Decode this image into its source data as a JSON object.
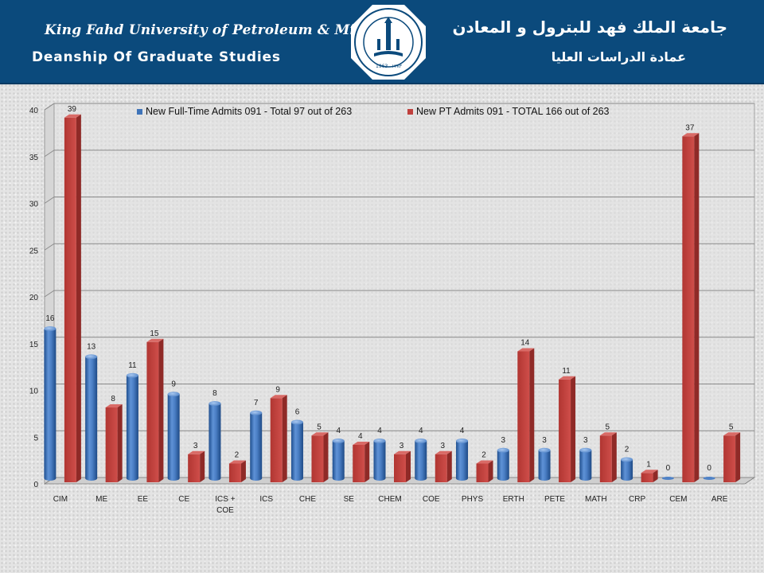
{
  "header": {
    "university_en": "King Fahd University of Petroleum & Minerals",
    "department_en": "Deanship Of Graduate Studies",
    "university_ar": "جامعة الملك فهد للبترول و المعادن",
    "department_ar": "عمادة الدراسات العليا",
    "logo_year_left": "1963",
    "logo_year_right": "١٣٨٣"
  },
  "colors": {
    "header_bg": "#0b4a7c",
    "series_fulltime": "#3f74b9",
    "series_parttime": "#c0403d"
  },
  "chart_data": {
    "type": "bar",
    "title": "",
    "xlabel": "",
    "ylabel": "",
    "ylim": [
      0,
      40
    ],
    "yticks": [
      0,
      5,
      10,
      15,
      20,
      25,
      30,
      35,
      40
    ],
    "grid": true,
    "legend_position": "top",
    "categories": [
      "CIM",
      "ME",
      "EE",
      "CE",
      "ICS + COE",
      "ICS",
      "CHE",
      "SE",
      "CHEM",
      "COE",
      "PHYS",
      "ERTH",
      "PETE",
      "MATH",
      "CRP",
      "CEM",
      "ARE"
    ],
    "series": [
      {
        "name": "New Full-Time Admits 091 - Total 97 out of 263",
        "shape": "cylinder",
        "values": [
          16,
          13,
          11,
          9,
          8,
          7,
          6,
          4,
          4,
          4,
          4,
          3,
          3,
          3,
          2,
          0,
          0
        ]
      },
      {
        "name": "New PT Admits 091 - TOTAL 166 out of 263",
        "shape": "box",
        "values": [
          39,
          8,
          15,
          3,
          2,
          9,
          5,
          4,
          3,
          3,
          2,
          14,
          11,
          5,
          1,
          37,
          5
        ]
      }
    ]
  }
}
